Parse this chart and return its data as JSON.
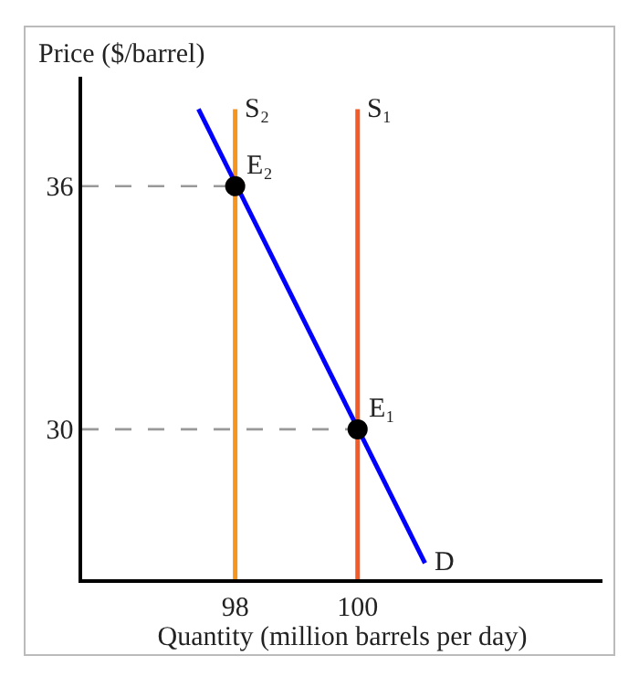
{
  "chart_data": {
    "type": "line",
    "xlabel": "Quantity (million barrels per day)",
    "ylabel": "Price ($/barrel)",
    "xlim": [
      95.5,
      104
    ],
    "ylim": [
      26.3,
      38.7
    ],
    "xticks": [
      98,
      100
    ],
    "yticks": [
      30,
      36
    ],
    "legend": false,
    "series": [
      {
        "name": "S₂",
        "color": "#f7941d",
        "x": [
          98,
          98
        ],
        "values": [
          26.3,
          37.9
        ]
      },
      {
        "name": "S₁",
        "color": "#f15a29",
        "x": [
          100,
          100
        ],
        "values": [
          26.3,
          37.9
        ]
      },
      {
        "name": "D",
        "color": "#0000ff",
        "x": [
          97.4,
          101.1
        ],
        "values": [
          37.9,
          26.7
        ]
      },
      {
        "color": "#999999",
        "line_style": "dashed",
        "x": [
          95.5,
          98
        ],
        "values": [
          36,
          36
        ]
      },
      {
        "color": "#999999",
        "line_style": "dashed",
        "x": [
          95.5,
          100
        ],
        "values": [
          30,
          30
        ]
      },
      {
        "type": "scatter",
        "marker": "circle",
        "color": "#000000",
        "x": [
          98,
          100
        ],
        "values": [
          36,
          30
        ]
      }
    ],
    "annotations": [
      {
        "text": "E₂",
        "x": 98,
        "y": 36
      },
      {
        "text": "E₁",
        "x": 100,
        "y": 30
      }
    ]
  }
}
